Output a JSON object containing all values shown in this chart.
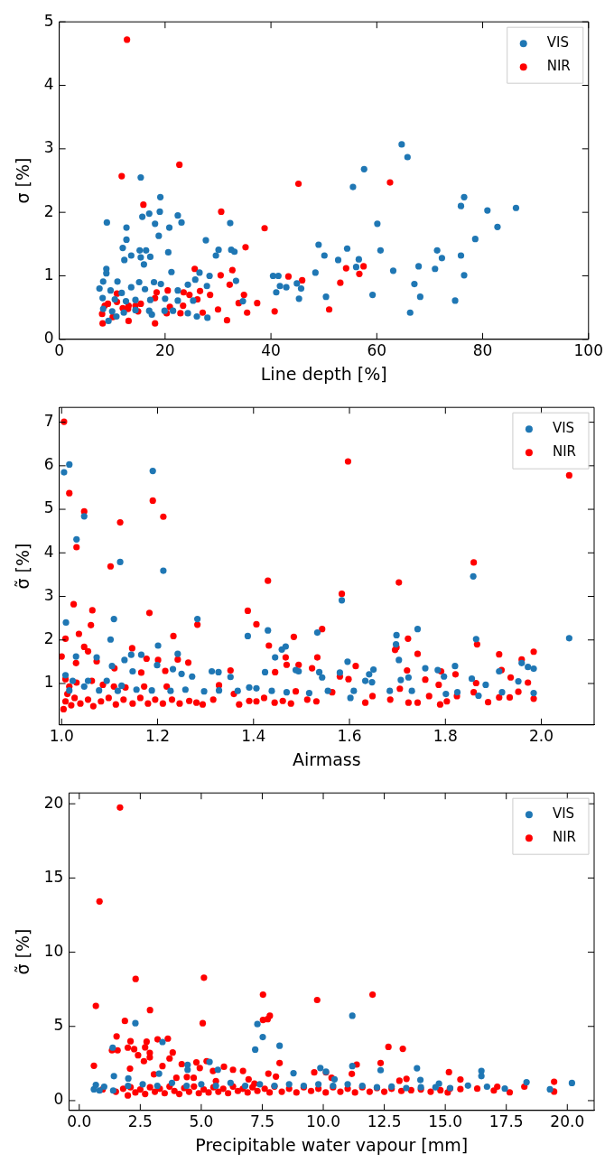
{
  "chart_data": [
    {
      "type": "scatter",
      "xlabel": "Line depth [%]",
      "ylabel": "σ [%]",
      "xlim": [
        0,
        100
      ],
      "ylim": [
        0,
        5
      ],
      "xticks": [
        0,
        20,
        40,
        60,
        80,
        100
      ],
      "yticks": [
        0,
        1,
        2,
        3,
        4,
        5
      ],
      "legend": "top right",
      "marker": "circle",
      "series": [
        {
          "name": "VIS",
          "color": "#1f77b4",
          "x": [
            9.0,
            15.4,
            19.1,
            15.7,
            17.0,
            19.0,
            18.1,
            22.4,
            23.1,
            12.7,
            20.8,
            18.8,
            12.7,
            12.0,
            27.7,
            15.2,
            16.4,
            12.3,
            13.6,
            15.4,
            16.0,
            17.2,
            20.6,
            30.1,
            32.3,
            32.5,
            33.1,
            29.6,
            8.9,
            8.9,
            21.2,
            26.5,
            28.4,
            33.4,
            25.7,
            24.3,
            22.4,
            27.9,
            19.2,
            17.9,
            15.1,
            13.6,
            11.0,
            8.3,
            7.6,
            9.7,
            11.8,
            16.2,
            8.2,
            10.5,
            12.6,
            14.4,
            17.2,
            20.0,
            22.4,
            25.3,
            8.3,
            10.0,
            12.2,
            14.4,
            17.0,
            19.9,
            21.5,
            17.5,
            9.3,
            10.8,
            24.3,
            26.0,
            28.0,
            34.7,
            41.0,
            40.4,
            41.4,
            41.7,
            42.9,
            44.9,
            45.7,
            45.3,
            48.4,
            49.0,
            50.1,
            50.4,
            52.7,
            54.4,
            55.5,
            56.1,
            56.6,
            57.6,
            59.2,
            60.1,
            60.7,
            63.1,
            64.7,
            65.8,
            66.3,
            67.1,
            67.9,
            68.2,
            71.0,
            71.4,
            72.3,
            74.8,
            75.9,
            75.9,
            76.5,
            76.5,
            78.6,
            80.9,
            82.8,
            86.3
          ],
          "values": [
            1.84,
            2.55,
            2.24,
            1.93,
            1.98,
            2.01,
            1.82,
            1.95,
            1.84,
            1.76,
            1.76,
            1.63,
            1.57,
            1.44,
            1.56,
            1.4,
            1.4,
            1.25,
            1.32,
            1.29,
            1.18,
            1.3,
            1.37,
            1.41,
            1.83,
            1.41,
            1.38,
            1.32,
            1.11,
            1.04,
            1.06,
            1.05,
            1.0,
            0.92,
            0.94,
            0.86,
            0.77,
            0.84,
            0.87,
            0.9,
            0.9,
            0.82,
            0.91,
            0.91,
            0.8,
            0.77,
            0.73,
            0.79,
            0.65,
            0.63,
            0.6,
            0.62,
            0.62,
            0.64,
            0.61,
            0.61,
            0.48,
            0.44,
            0.42,
            0.46,
            0.45,
            0.45,
            0.45,
            0.39,
            0.29,
            0.36,
            0.41,
            0.36,
            0.34,
            0.6,
            0.74,
            1.0,
            1.0,
            0.84,
            0.82,
            0.88,
            0.8,
            0.64,
            1.05,
            1.49,
            1.32,
            0.67,
            1.25,
            1.43,
            2.4,
            1.14,
            1.26,
            2.68,
            0.7,
            1.82,
            1.4,
            1.08,
            3.07,
            2.87,
            0.42,
            0.87,
            1.15,
            0.67,
            1.11,
            1.4,
            1.28,
            0.61,
            2.1,
            1.32,
            2.24,
            1.01,
            1.58,
            2.03,
            1.77,
            2.07
          ]
        },
        {
          "name": "NIR",
          "color": "#ff0000",
          "x": [
            12.8,
            11.8,
            22.7,
            15.9,
            30.6,
            45.2,
            62.5,
            38.8,
            35.2,
            25.6,
            32.7,
            30.5,
            43.3,
            45.9,
            54.2,
            57.5,
            56.7,
            53.1,
            32.2,
            28.5,
            26.6,
            24.6,
            23.5,
            26.1,
            20.5,
            18.4,
            18.1,
            10.9,
            10.9,
            9.2,
            8.6,
            12.0,
            13.1,
            14.4,
            15.4,
            14.9,
            13.0,
            23.4,
            20.9,
            34.9,
            33.9,
            37.4,
            30.0,
            27.1,
            20.3,
            22.9,
            35.5,
            31.7,
            40.7,
            51.0,
            8.1,
            8.2,
            10.1,
            13.1,
            18.1
          ],
          "values": [
            4.72,
            2.57,
            2.75,
            2.12,
            2.01,
            2.45,
            2.47,
            1.75,
            1.45,
            1.11,
            1.09,
            1.01,
            0.99,
            0.93,
            1.12,
            1.15,
            1.03,
            0.89,
            0.86,
            0.7,
            0.76,
            0.7,
            0.74,
            0.63,
            0.77,
            0.74,
            0.65,
            0.72,
            0.59,
            0.56,
            0.53,
            0.49,
            0.53,
            0.53,
            0.56,
            0.44,
            0.48,
            0.53,
            0.51,
            0.7,
            0.57,
            0.57,
            0.47,
            0.42,
            0.41,
            0.41,
            0.42,
            0.3,
            0.44,
            0.47,
            0.4,
            0.25,
            0.35,
            0.29,
            0.25
          ]
        }
      ]
    },
    {
      "type": "scatter",
      "xlabel": "Airmass",
      "ylabel": "σ̃ [%]",
      "xlim": [
        0.995,
        2.11
      ],
      "ylim": [
        0.05,
        7.34
      ],
      "xticks": [
        {
          "value": 1,
          "label": "1.0"
        },
        {
          "value": 1.2,
          "label": "1.2"
        },
        {
          "value": 1.4,
          "label": "1.4"
        },
        {
          "value": 1.6,
          "label": "1.6"
        },
        {
          "value": 1.8,
          "label": "1.8"
        },
        {
          "value": 2,
          "label": "2.0"
        }
      ],
      "yticks": [
        1,
        2,
        3,
        4,
        5,
        6,
        7
      ],
      "legend": "top right",
      "marker": "circle",
      "series": [
        {
          "name": "VIS",
          "color": "#1f77b4",
          "x": [
            1.005,
            1.016,
            1.19,
            1.047,
            1.031,
            1.122,
            1.212,
            1.009,
            1.109,
            1.283,
            1.102,
            1.201,
            1.131,
            1.242,
            1.073,
            1.03,
            1.145,
            1.166,
            1.199,
            1.105,
            1.148,
            1.232,
            1.25,
            1.272,
            1.313,
            1.327,
            1.352,
            1.388,
            1.43,
            1.424,
            1.445,
            1.459,
            1.467,
            1.488,
            1.494,
            1.533,
            1.537,
            1.543,
            1.58,
            1.584,
            1.596,
            1.633,
            1.641,
            1.65,
            1.647,
            1.697,
            1.698,
            1.703,
            1.707,
            1.723,
            1.742,
            1.758,
            1.784,
            1.797,
            1.82,
            1.855,
            1.858,
            1.864,
            1.884,
            1.912,
            1.952,
            1.959,
            1.972,
            1.984,
            2.058,
            1.016,
            1.047,
            1.078,
            1.117,
            1.156,
            1.188,
            1.227,
            1.258,
            1.297,
            1.328,
            1.367,
            1.391,
            1.406,
            1.438,
            1.469,
            1.516,
            1.555,
            1.602,
            1.609,
            1.684,
            1.73,
            1.801,
            1.825,
            1.869,
            1.918,
            1.984,
            1.008,
            1.023,
            1.055,
            1.094,
            1.125
          ],
          "values": [
            5.85,
            6.03,
            5.88,
            4.84,
            4.31,
            3.79,
            3.59,
            2.4,
            2.48,
            2.48,
            2.01,
            1.87,
            1.54,
            1.68,
            1.6,
            1.62,
            1.66,
            1.66,
            1.42,
            1.4,
            1.28,
            1.33,
            1.22,
            1.16,
            1.28,
            1.26,
            1.15,
            2.09,
            2.22,
            1.26,
            1.6,
            1.78,
            1.85,
            1.31,
            1.28,
            2.17,
            1.26,
            1.14,
            1.25,
            2.91,
            1.5,
            1.06,
            1.21,
            1.32,
            1.03,
            1.9,
            2.11,
            1.54,
            1.08,
            1.14,
            2.25,
            1.35,
            1.31,
            1.16,
            1.4,
            1.11,
            3.46,
            2.02,
            0.97,
            1.28,
            1.05,
            1.47,
            1.38,
            1.34,
            2.04,
            0.84,
            0.93,
            0.84,
            0.83,
            0.86,
            0.84,
            0.83,
            0.86,
            0.82,
            0.84,
            0.83,
            0.91,
            0.89,
            0.83,
            0.8,
            0.78,
            0.83,
            0.67,
            0.83,
            0.83,
            0.83,
            0.76,
            0.8,
            0.72,
            0.8,
            0.78,
            1.19,
            1.06,
            1.06,
            1.06,
            0.95
          ]
        },
        {
          "name": "NIR",
          "color": "#ff0000",
          "x": [
            1.005,
            1.016,
            1.047,
            1.031,
            1.122,
            1.19,
            1.212,
            1.102,
            1.025,
            1.064,
            1.061,
            1.036,
            1.008,
            1.183,
            1.283,
            1.233,
            1.147,
            1.177,
            1.201,
            1.242,
            1.264,
            1.047,
            1.055,
            1.073,
            1.03,
            1.0,
            1.11,
            1.166,
            1.216,
            1.352,
            1.388,
            1.406,
            1.43,
            1.432,
            1.445,
            1.467,
            1.469,
            1.484,
            1.494,
            1.522,
            1.533,
            1.543,
            1.564,
            1.58,
            1.584,
            1.597,
            1.598,
            1.613,
            1.695,
            1.698,
            1.703,
            1.705,
            1.72,
            1.722,
            1.742,
            1.758,
            1.786,
            1.791,
            1.821,
            1.859,
            1.866,
            1.864,
            1.912,
            1.917,
            1.936,
            1.952,
            1.959,
            1.972,
            1.984,
            2.058,
            1.004,
            1.008,
            1.012,
            1.02,
            1.027,
            1.039,
            1.055,
            1.066,
            1.082,
            1.098,
            1.113,
            1.129,
            1.148,
            1.164,
            1.18,
            1.195,
            1.211,
            1.23,
            1.246,
            1.266,
            1.281,
            1.294,
            1.316,
            1.328,
            1.359,
            1.37,
            1.391,
            1.406,
            1.422,
            1.444,
            1.461,
            1.478,
            1.488,
            1.512,
            1.531,
            1.633,
            1.648,
            1.685,
            1.723,
            1.742,
            1.766,
            1.789,
            1.803,
            1.824,
            1.859,
            1.889,
            1.912,
            1.934,
            1.984,
            1.008,
            1.016,
            1.031,
            1.063,
            1.086,
            1.109,
            1.133,
            1.172,
            1.219
          ],
          "values": [
            7.01,
            5.37,
            4.95,
            4.13,
            4.7,
            5.2,
            4.83,
            3.69,
            2.82,
            2.68,
            2.34,
            2.14,
            2.03,
            2.62,
            2.35,
            2.09,
            1.81,
            1.57,
            1.54,
            1.55,
            1.48,
            1.84,
            1.74,
            1.51,
            1.47,
            1.62,
            1.35,
            1.25,
            1.29,
            1.3,
            2.67,
            2.36,
            3.36,
            1.87,
            1.26,
            1.6,
            1.43,
            2.07,
            1.43,
            1.35,
            1.6,
            2.25,
            0.8,
            1.16,
            3.06,
            6.1,
            1.1,
            1.4,
            1.77,
            1.83,
            3.32,
            0.88,
            1.3,
            2.03,
            1.68,
            1.09,
            0.97,
            1.28,
            1.21,
            3.78,
            1.9,
            1.01,
            1.67,
            1.31,
            1.14,
            0.81,
            1.55,
            1.02,
            1.73,
            5.78,
            0.41,
            0.59,
            0.76,
            0.5,
            0.67,
            0.54,
            0.63,
            0.48,
            0.59,
            0.67,
            0.52,
            0.63,
            0.54,
            0.67,
            0.54,
            0.63,
            0.54,
            0.63,
            0.54,
            0.6,
            0.56,
            0.52,
            0.63,
            0.96,
            0.76,
            0.52,
            0.6,
            0.59,
            0.67,
            0.56,
            0.6,
            0.54,
            0.82,
            0.63,
            0.59,
            0.56,
            0.71,
            0.63,
            0.56,
            0.56,
            0.71,
            0.52,
            0.59,
            0.71,
            0.8,
            0.57,
            0.68,
            0.68,
            0.65,
            1.1,
            0.93,
            1.02,
            1.06,
            0.97,
            0.93,
            0.91,
            0.93,
            0.93
          ]
        }
      ]
    },
    {
      "type": "scatter",
      "xlabel": "Precipitable water vapour [mm]",
      "ylabel": "σ̃ [%]",
      "xlim": [
        -0.42,
        21.1
      ],
      "ylim": [
        -0.66,
        20.73
      ],
      "xticks": [
        {
          "value": 0,
          "label": "0.0"
        },
        {
          "value": 2.5,
          "label": "2.5"
        },
        {
          "value": 5,
          "label": "5.0"
        },
        {
          "value": 7.5,
          "label": "7.5"
        },
        {
          "value": 10,
          "label": "10.0"
        },
        {
          "value": 12.5,
          "label": "12.5"
        },
        {
          "value": 15,
          "label": "15.0"
        },
        {
          "value": 17.5,
          "label": "17.5"
        },
        {
          "value": 20,
          "label": "20.0"
        }
      ],
      "yticks": [
        0,
        5,
        10,
        15,
        20
      ],
      "legend": "top right",
      "marker": "circle",
      "series": [
        {
          "name": "VIS",
          "color": "#1f77b4",
          "x": [
            2.3,
            7.3,
            7.52,
            7.21,
            8.21,
            11.19,
            3.41,
            1.37,
            1.42,
            2.01,
            3.27,
            4.44,
            4.44,
            5.34,
            5.68,
            8.78,
            9.88,
            10.11,
            10.46,
            11.19,
            12.35,
            13.84,
            13.98,
            14.74,
            16.48,
            16.48,
            15.93,
            16.71,
            17.44,
            18.33,
            19.29,
            20.19,
            0.6,
            0.68,
            0.83,
            1.02,
            1.39,
            2.0,
            2.6,
            3.2,
            3.8,
            4.4,
            5.0,
            5.6,
            6.2,
            6.8,
            7.4,
            8.0,
            8.6,
            9.2,
            9.8,
            10.4,
            11.0,
            11.6,
            12.2,
            12.8,
            13.4,
            14.0,
            14.6,
            15.2
          ],
          "values": [
            5.22,
            5.16,
            4.28,
            3.44,
            3.7,
            5.72,
            3.95,
            3.57,
            1.65,
            1.49,
            1.82,
            2.41,
            2.08,
            2.61,
            2.08,
            1.85,
            2.2,
            1.95,
            1.44,
            2.33,
            2.05,
            2.18,
            1.39,
            1.14,
            2.0,
            1.65,
            1.01,
            0.94,
            0.81,
            1.24,
            0.76,
            1.19,
            0.76,
            1.06,
            0.68,
            0.94,
            0.68,
            1.0,
            1.1,
            1.0,
            1.2,
            1.0,
            1.1,
            1.0,
            1.2,
            1.0,
            1.1,
            1.0,
            1.1,
            1.0,
            1.1,
            1.0,
            1.1,
            1.0,
            0.9,
            0.95,
            0.85,
            0.9,
            0.9,
            0.85
          ]
        },
        {
          "name": "NIR",
          "color": "#ff0000",
          "x": [
            1.67,
            0.83,
            0.68,
            0.6,
            2.31,
            5.11,
            5.06,
            2.9,
            1.87,
            1.53,
            1.57,
            1.34,
            2.1,
            1.99,
            2.25,
            2.41,
            2.76,
            2.7,
            2.89,
            2.89,
            3.21,
            3.63,
            3.83,
            3.7,
            3.41,
            3.06,
            2.08,
            2.65,
            4.2,
            4.8,
            4.94,
            5.22,
            5.48,
            5.93,
            6.3,
            6.71,
            4.69,
            4.41,
            3.98,
            5.6,
            6.94,
            7.18,
            7.53,
            7.53,
            7.81,
            7.72,
            8.21,
            7.75,
            8.06,
            9.75,
            9.63,
            10.11,
            10.34,
            12.02,
            12.67,
            13.26,
            12.35,
            11.37,
            11.17,
            13.12,
            13.41,
            15.15,
            15.62,
            15.19,
            15.62,
            16.31,
            16.99,
            17.64,
            18.24,
            19.46,
            19.46,
            17.13,
            0.96,
            1.99,
            1.5,
            1.8,
            2.1,
            2.3,
            2.5,
            2.7,
            2.9,
            3.1,
            3.3,
            3.5,
            3.7,
            3.9,
            4.1,
            4.3,
            4.5,
            4.7,
            4.9,
            5.1,
            5.3,
            5.5,
            5.7,
            5.9,
            6.1,
            6.3,
            6.5,
            6.7,
            6.9,
            7.1,
            7.3,
            7.6,
            7.8,
            8.0,
            8.3,
            8.6,
            8.9,
            9.2,
            9.5,
            9.8,
            10.1,
            10.4,
            10.7,
            11.0,
            11.3,
            11.6,
            11.9,
            12.2,
            12.5,
            12.8,
            13.2,
            13.6,
            14.0,
            14.4,
            14.8,
            15.1
          ],
          "values": [
            19.75,
            13.42,
            6.38,
            2.35,
            8.2,
            8.28,
            5.22,
            6.1,
            5.37,
            4.33,
            3.39,
            3.39,
            4.0,
            3.57,
            3.47,
            3.06,
            3.97,
            3.59,
            3.22,
            2.91,
            4.13,
            4.18,
            3.24,
            2.84,
            2.33,
            1.77,
            2.15,
            2.66,
            2.46,
            2.58,
            2.2,
            2.66,
            2.0,
            2.28,
            2.08,
            2.0,
            1.54,
            1.59,
            1.54,
            1.32,
            1.44,
            1.14,
            7.14,
            5.44,
            5.72,
            5.49,
            2.53,
            1.82,
            1.62,
            6.78,
            1.9,
            1.9,
            1.54,
            7.14,
            3.62,
            3.49,
            2.53,
            2.43,
            1.8,
            1.34,
            1.47,
            1.92,
            1.42,
            0.81,
            0.78,
            0.81,
            0.68,
            0.56,
            0.94,
            1.27,
            0.61,
            0.94,
            0.76,
            0.35,
            0.6,
            0.8,
            0.9,
            0.55,
            0.75,
            0.45,
            0.9,
            0.6,
            0.8,
            0.5,
            0.95,
            0.65,
            0.45,
            0.85,
            0.6,
            0.95,
            0.5,
            0.75,
            0.55,
            0.9,
            0.6,
            0.8,
            0.5,
            0.95,
            0.65,
            0.8,
            0.55,
            0.9,
            0.65,
            0.8,
            0.55,
            0.95,
            0.6,
            0.8,
            0.55,
            0.9,
            0.65,
            0.8,
            0.55,
            0.9,
            0.6,
            0.8,
            0.55,
            0.9,
            0.6,
            0.85,
            0.6,
            0.8,
            0.65,
            0.7,
            0.75,
            0.6,
            0.7,
            0.55
          ]
        }
      ]
    }
  ]
}
